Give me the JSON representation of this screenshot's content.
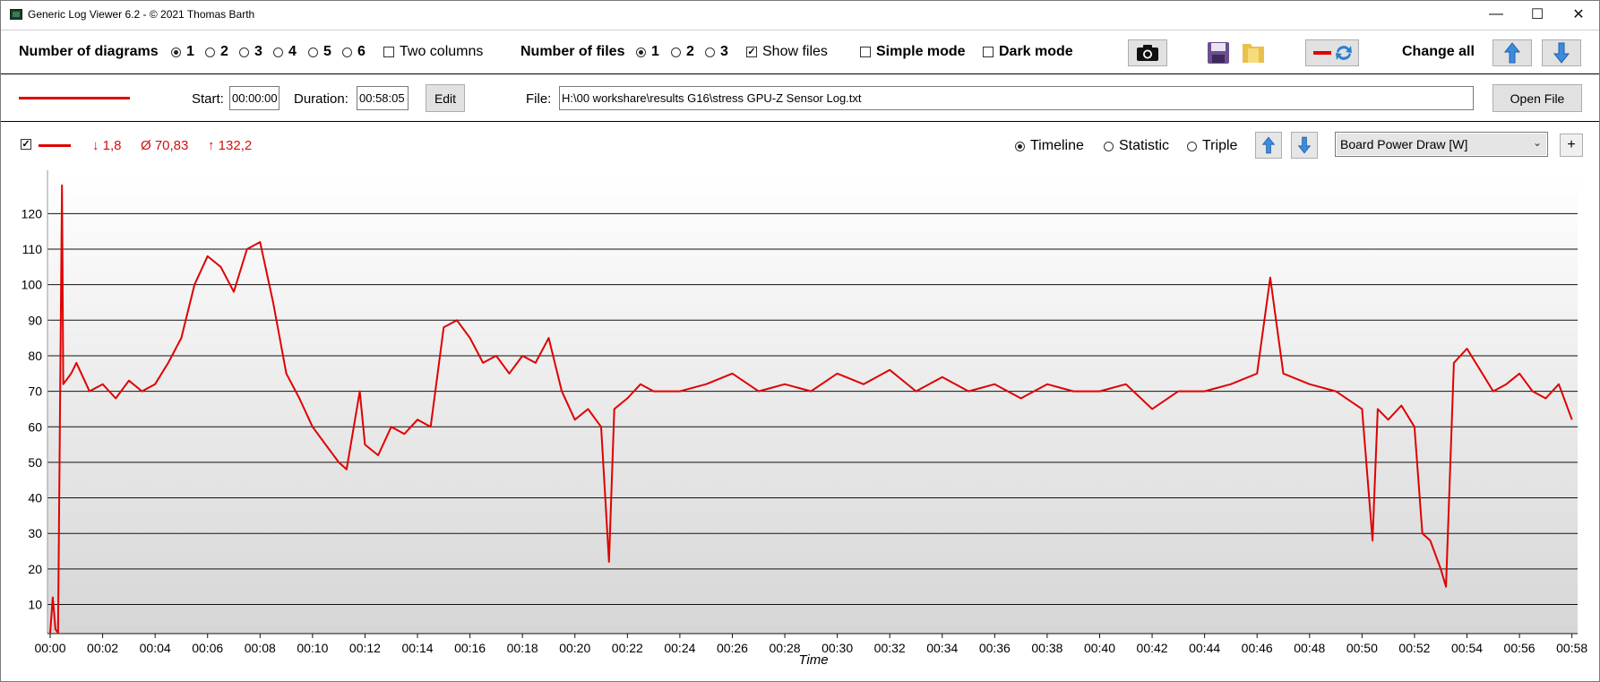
{
  "window": {
    "title": "Generic Log Viewer 6.2 - © 2021 Thomas Barth",
    "minimize": "—",
    "maximize": "☐",
    "close": "✕"
  },
  "toolbar": {
    "diagrams_label": "Number of diagrams",
    "diagram_options": [
      "1",
      "2",
      "3",
      "4",
      "5",
      "6"
    ],
    "diagram_selected": "1",
    "two_columns_label": "Two columns",
    "two_columns_checked": false,
    "files_label": "Number of files",
    "file_options": [
      "1",
      "2",
      "3"
    ],
    "file_selected": "1",
    "show_files_label": "Show files",
    "show_files_checked": true,
    "simple_mode_label": "Simple mode",
    "simple_mode_checked": false,
    "dark_mode_label": "Dark mode",
    "dark_mode_checked": false,
    "change_all_label": "Change all",
    "icons": [
      "camera-icon",
      "save-icon",
      "folder-icon",
      "line-color-swap-icon",
      "arrow-up-icon",
      "arrow-down-icon"
    ]
  },
  "file_row": {
    "start_label": "Start:",
    "start_value": "00:00:00",
    "duration_label": "Duration:",
    "duration_value": "00:58:05",
    "edit_label": "Edit",
    "file_label": "File:",
    "file_value": "H:\\00 workshare\\results G16\\stress GPU-Z Sensor Log.txt",
    "open_file_label": "Open File",
    "line_color": "#e00000"
  },
  "diagram": {
    "min_value": "↓ 1,8",
    "avg_value": "Ø 70,83",
    "max_value": "↑ 132,2",
    "modes": [
      "Timeline",
      "Statistic",
      "Triple"
    ],
    "mode_selected": "Timeline",
    "sensor_selected": "Board Power Draw [W]",
    "add_label": "+"
  },
  "chart_data": {
    "type": "line",
    "title": "",
    "xlabel": "Time",
    "ylabel": "",
    "series": [
      {
        "color": "#e00000",
        "x_minutes": [
          0,
          0.1,
          0.2,
          0.3,
          0.45,
          0.5,
          0.8,
          1,
          1.5,
          2,
          2.5,
          3,
          3.5,
          4,
          4.5,
          5,
          5.5,
          6,
          6.5,
          7,
          7.5,
          8,
          8.5,
          9,
          9.5,
          10,
          10.5,
          11,
          11.3,
          11.8,
          12,
          12.5,
          13,
          13.5,
          14,
          14.5,
          15,
          15.5,
          16,
          16.5,
          17,
          17.5,
          18,
          18.5,
          19,
          19.5,
          20,
          20.5,
          21,
          21.3,
          21.5,
          22,
          22.5,
          23,
          24,
          25,
          26,
          27,
          28,
          29,
          30,
          31,
          32,
          33,
          34,
          35,
          36,
          37,
          38,
          39,
          40,
          41,
          42,
          43,
          44,
          45,
          46,
          46.5,
          47,
          48,
          49,
          50,
          50.4,
          50.6,
          51,
          51.5,
          52,
          52.3,
          52.6,
          53,
          53.2,
          53.5,
          54,
          54.5,
          55,
          55.5,
          56,
          56.5,
          57,
          57.5,
          58
        ],
        "y_watts": [
          2,
          12,
          3,
          2,
          128,
          72,
          75,
          78,
          70,
          72,
          68,
          73,
          70,
          72,
          78,
          85,
          100,
          108,
          105,
          98,
          110,
          112,
          95,
          75,
          68,
          60,
          55,
          50,
          48,
          70,
          55,
          52,
          60,
          58,
          62,
          60,
          88,
          90,
          85,
          78,
          80,
          75,
          80,
          78,
          85,
          70,
          62,
          65,
          60,
          22,
          65,
          68,
          72,
          70,
          70,
          72,
          75,
          70,
          72,
          70,
          75,
          72,
          76,
          70,
          74,
          70,
          72,
          68,
          72,
          70,
          70,
          72,
          65,
          70,
          70,
          72,
          75,
          102,
          75,
          72,
          70,
          65,
          28,
          65,
          62,
          66,
          60,
          30,
          28,
          20,
          15,
          78,
          82,
          76,
          70,
          72,
          75,
          70,
          68,
          72,
          62
        ]
      }
    ],
    "ylim": [
      1.8,
      132.2
    ],
    "yticks": [
      10,
      20,
      30,
      40,
      50,
      60,
      70,
      80,
      90,
      100,
      110,
      120
    ],
    "xlim_minutes": [
      0,
      58.08
    ],
    "xticks": [
      "00:00",
      "00:02",
      "00:04",
      "00:06",
      "00:08",
      "00:10",
      "00:12",
      "00:14",
      "00:16",
      "00:18",
      "00:20",
      "00:22",
      "00:24",
      "00:26",
      "00:28",
      "00:30",
      "00:32",
      "00:34",
      "00:36",
      "00:38",
      "00:40",
      "00:42",
      "00:44",
      "00:46",
      "00:48",
      "00:50",
      "00:52",
      "00:54",
      "00:56",
      "00:58"
    ],
    "grid": true
  }
}
